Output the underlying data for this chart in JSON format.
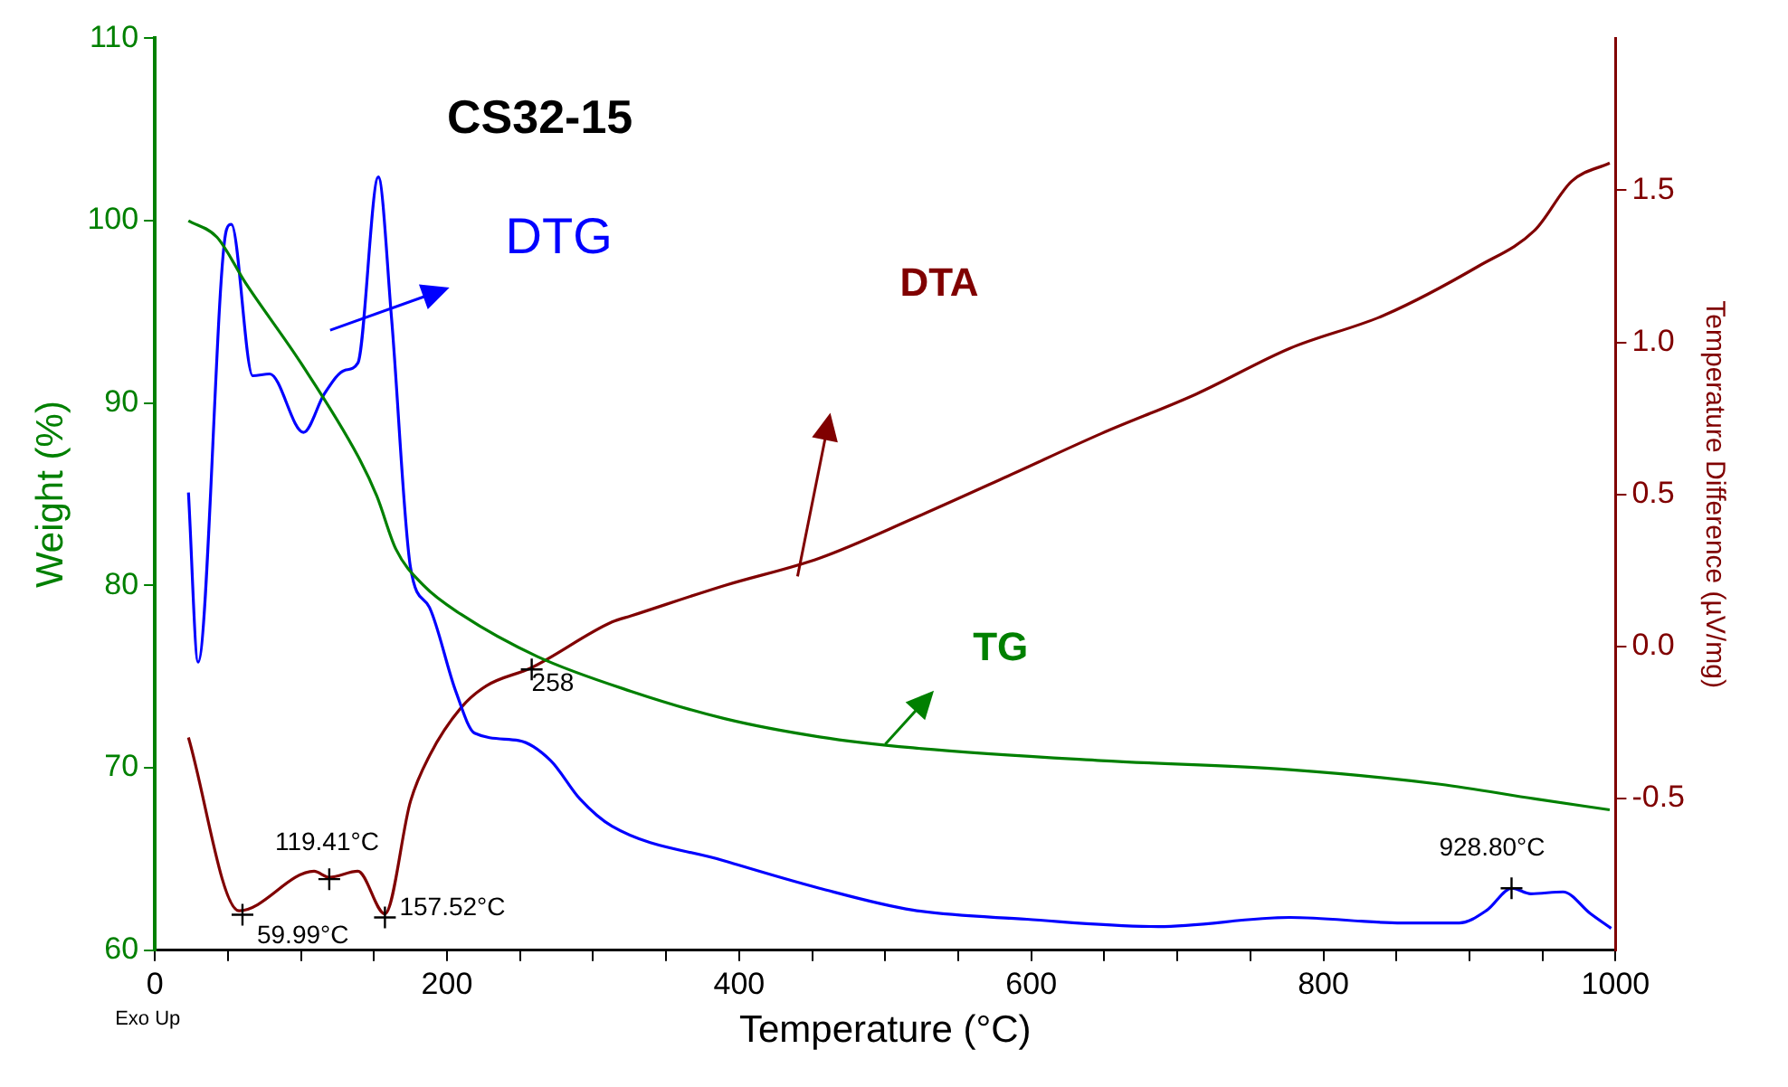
{
  "chart_data": {
    "type": "line",
    "title": "CS32-15",
    "xlabel": "Temperature (°C)",
    "ylabel": "Weight (%)",
    "y2label": "Temperature Difference (µV/mg)",
    "xlim": [
      0,
      1000
    ],
    "xticks": [
      0,
      {
        "value": 50,
        "label": null
      },
      {
        "value": 100,
        "label": null
      },
      {
        "value": 150,
        "label": null
      },
      200,
      {
        "value": 250,
        "label": null
      },
      {
        "value": 300,
        "label": null
      },
      {
        "value": 350,
        "label": null
      },
      400,
      {
        "value": 450,
        "label": null
      },
      {
        "value": 500,
        "label": null
      },
      {
        "value": 550,
        "label": null
      },
      600,
      {
        "value": 650,
        "label": null
      },
      {
        "value": 700,
        "label": null
      },
      {
        "value": 750,
        "label": null
      },
      800,
      {
        "value": 850,
        "label": null
      },
      {
        "value": 900,
        "label": null
      },
      {
        "value": 950,
        "label": null
      },
      1000
    ],
    "ylim": [
      60,
      110
    ],
    "yticks": [
      60,
      70,
      80,
      90,
      100,
      110
    ],
    "y2lim": [
      -1.0,
      2.0
    ],
    "y2ticks": [
      -0.5,
      {
        "value": 0,
        "label": "0.0"
      },
      0.5,
      {
        "value": 1,
        "label": "1.0"
      },
      1.5
    ],
    "grid": false,
    "legend": false,
    "marker": "none",
    "line_style": "solid",
    "series": [
      {
        "name": "TG",
        "color": "#008000",
        "axis": "y",
        "x": [
          23,
          42.5,
          62,
          100,
          139,
          152,
          165,
          184,
          210,
          262,
          326,
          390,
          455,
          519,
          648,
          777,
          880,
          945,
          996
        ],
        "values": [
          100,
          99.1,
          96.6,
          92.2,
          87.1,
          84.9,
          82,
          80,
          78.4,
          76.1,
          74.2,
          72.7,
          71.7,
          71.1,
          70.4,
          69.9,
          69.1,
          68.3,
          67.7
        ]
      },
      {
        "name": "DTG",
        "color": "#0000ff",
        "axis": "y",
        "x": [
          23,
          29.6,
          49,
          52.4,
          67,
          78.6,
          101.8,
          116,
          130,
          139,
          153,
          162,
          175,
          188,
          206,
          219,
          249,
          271,
          291,
          313,
          390,
          455,
          519,
          597,
          687,
          777,
          854,
          893,
          912,
          929,
          942,
          964,
          983,
          997
        ],
        "values": [
          85.1,
          75.8,
          99.5,
          99.8,
          91.5,
          91.6,
          88.4,
          90.5,
          91.8,
          92.2,
          102.4,
          94.7,
          81,
          78.8,
          74.2,
          71.9,
          71.5,
          70.4,
          68.3,
          66.8,
          64.9,
          63.4,
          62.2,
          61.7,
          61.3,
          61.8,
          61.5,
          61.5,
          62.2,
          63.4,
          63.1,
          63.2,
          62,
          61.2
        ]
      },
      {
        "name": "DTA",
        "color": "#800000",
        "axis": "y2",
        "x": [
          23,
          57.6,
          109,
          119.4,
          139,
          157.5,
          175,
          188,
          210,
          227,
          258,
          313,
          326,
          390,
          455,
          519,
          584,
          648,
          713,
          777,
          842,
          906,
          945,
          970,
          996
        ],
        "values": [
          -0.3,
          -0.87,
          -0.74,
          -0.76,
          -0.74,
          -0.88,
          -0.51,
          -0.36,
          -0.2,
          -0.13,
          -0.07,
          0.08,
          0.1,
          0.2,
          0.29,
          0.42,
          0.56,
          0.7,
          0.83,
          0.98,
          1.09,
          1.25,
          1.37,
          1.53,
          1.59
        ]
      }
    ],
    "annotations": [
      {
        "text": "59.99°C",
        "x": 59.99,
        "y": 61.95
      },
      {
        "text": "119.41°C",
        "x": 119.41,
        "y": 63.9
      },
      {
        "text": "157.52°C",
        "x": 157.52,
        "y": 61.8
      },
      {
        "text": "258",
        "x": 258,
        "y": 75.4
      },
      {
        "text": "928.80°C",
        "x": 928.8,
        "y": 63.4
      },
      "Exo Up"
    ]
  }
}
